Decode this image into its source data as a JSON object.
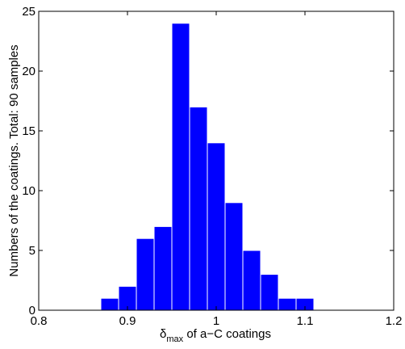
{
  "chart_data": {
    "type": "bar",
    "bin_width": 0.02,
    "bins": [
      {
        "center": 0.88,
        "count": 1
      },
      {
        "center": 0.9,
        "count": 2
      },
      {
        "center": 0.92,
        "count": 6
      },
      {
        "center": 0.94,
        "count": 7
      },
      {
        "center": 0.96,
        "count": 24
      },
      {
        "center": 0.98,
        "count": 17
      },
      {
        "center": 1.0,
        "count": 14
      },
      {
        "center": 1.02,
        "count": 9
      },
      {
        "center": 1.04,
        "count": 5
      },
      {
        "center": 1.06,
        "count": 3
      },
      {
        "center": 1.08,
        "count": 1
      },
      {
        "center": 1.1,
        "count": 1
      }
    ],
    "xlim": [
      0.8,
      1.2
    ],
    "ylim": [
      0,
      25
    ],
    "xticks": [
      0.8,
      0.9,
      1.0,
      1.1,
      1.2
    ],
    "xtick_labels": [
      "0.8",
      "0.9",
      "1",
      "1.1",
      "1.2"
    ],
    "yticks": [
      0,
      5,
      10,
      15,
      20,
      25
    ],
    "ytick_labels": [
      "0",
      "5",
      "10",
      "15",
      "20",
      "25"
    ],
    "xlabel": {
      "symbol": "δ",
      "subscript": "max",
      "rest": " of a−C coatings"
    },
    "ylabel": "Numbers of the coatings. Total: 90 samples",
    "bar_color": "#0000ff",
    "grid": false
  }
}
